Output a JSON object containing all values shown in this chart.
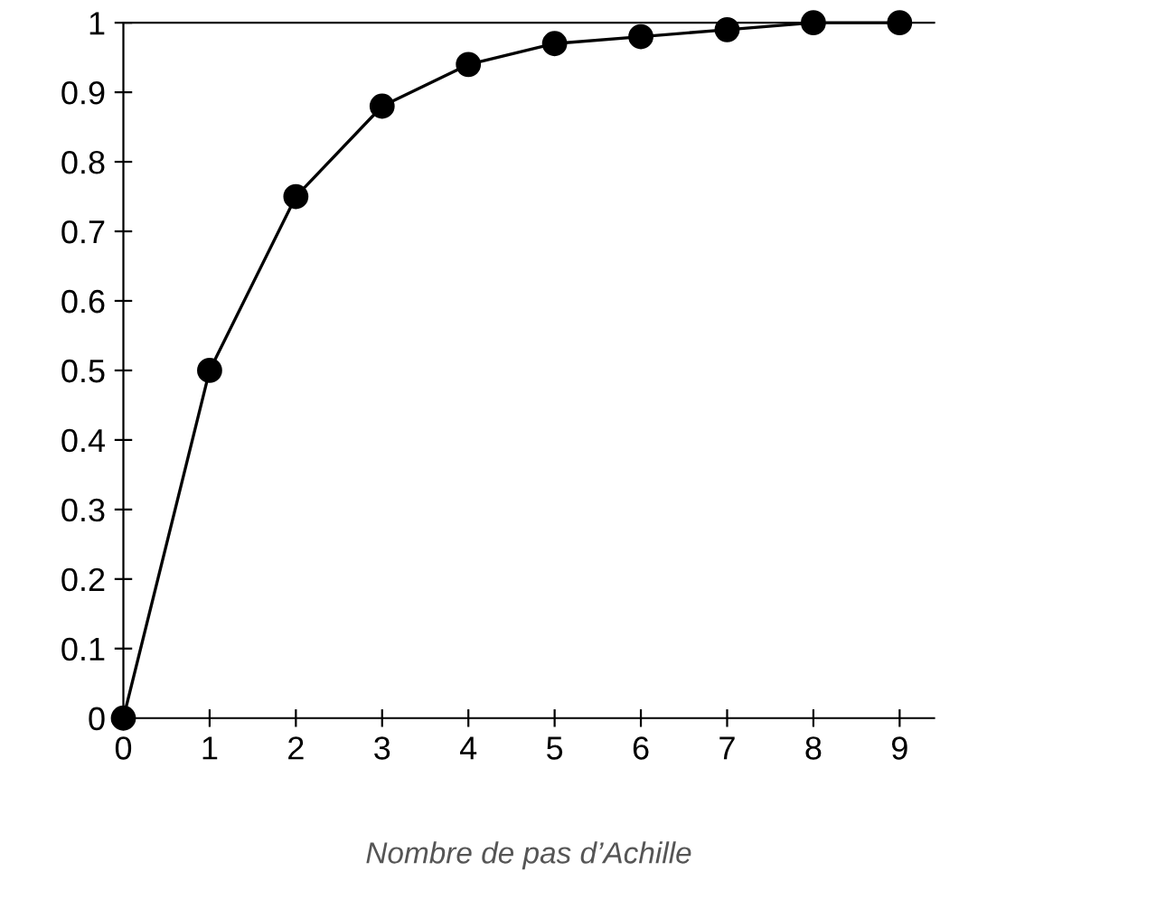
{
  "chart_data": {
    "type": "line",
    "xlabel": "Nombre de pas d’Achille",
    "x": [
      0,
      1,
      2,
      3,
      4,
      5,
      6,
      7,
      8,
      9
    ],
    "series": [
      {
        "color": "#000000",
        "values": [
          0,
          0.5,
          0.75,
          0.88,
          0.94,
          0.97,
          0.98,
          0.99,
          1.0,
          1.0
        ]
      }
    ],
    "xlim": [
      0,
      9.4
    ],
    "xticks": [
      0,
      1,
      2,
      3,
      4,
      5,
      6,
      7,
      8,
      9
    ],
    "ylim": [
      0,
      1
    ],
    "yticks": [
      0,
      0.1,
      0.2,
      0.3,
      0.4,
      0.5,
      0.6,
      0.7,
      0.8,
      0.9,
      1
    ],
    "marker": "circle",
    "line_style": "solid",
    "grid": false,
    "legend": false
  }
}
